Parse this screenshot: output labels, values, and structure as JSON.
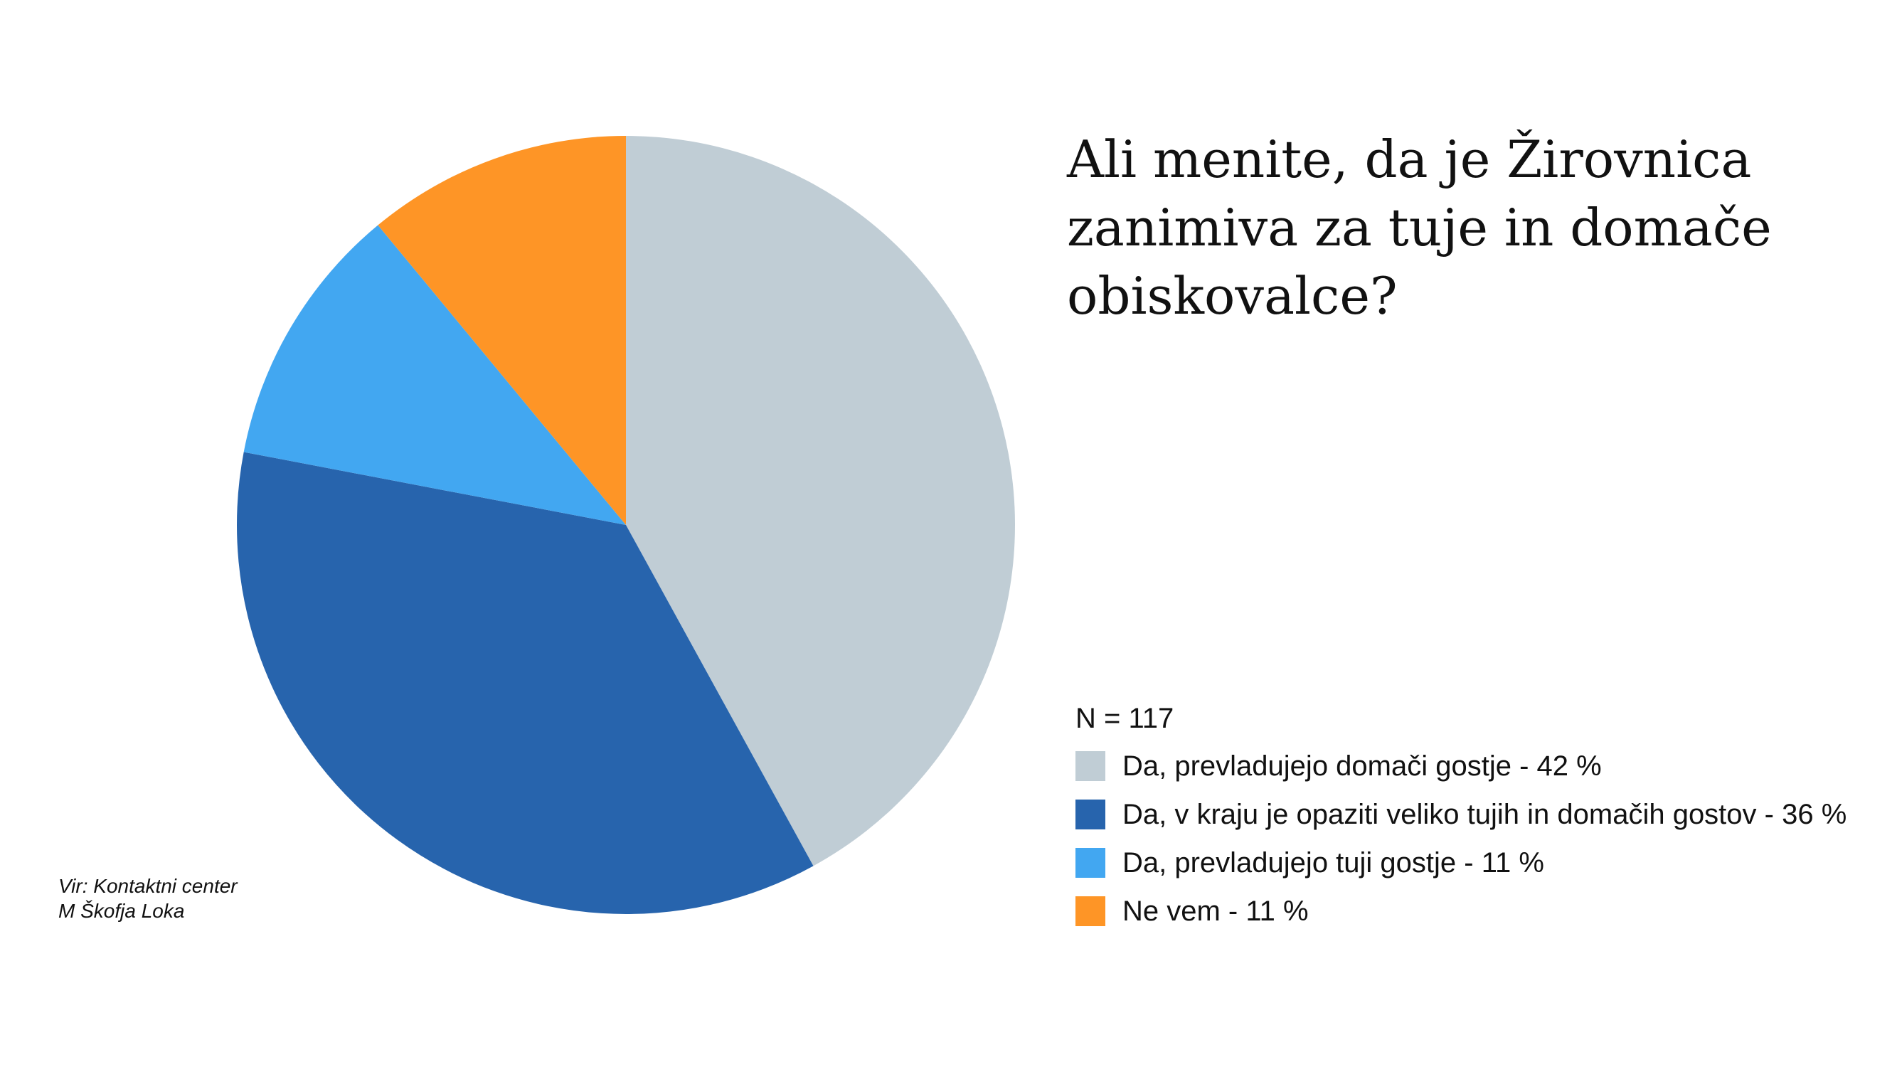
{
  "chart_data": {
    "type": "pie",
    "title": "Ali menite, da je Žirovnica\nzanimiva za tuje in domače\nobiskovalce?",
    "sample_note": "N = 117",
    "categories": [
      "Da, prevladujejo domači gostje - 42 %",
      "Da, v kraju je opaziti veliko tujih in domačih gostov - 36 %",
      "Da, prevladujejo tuji gostje - 11 %",
      "Ne vem - 11 %"
    ],
    "values": [
      42,
      36,
      11,
      11
    ],
    "colors": [
      "#c0cdd5",
      "#2764ad",
      "#42a7f1",
      "#fe9526"
    ],
    "legend_position": "right"
  },
  "source": {
    "line1": "Vir: Kontaktni center",
    "line2": "M Škofja Loka"
  }
}
